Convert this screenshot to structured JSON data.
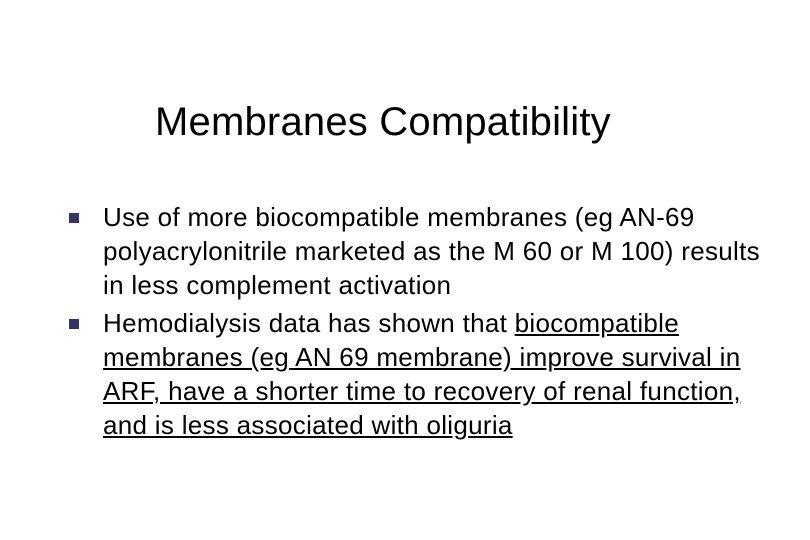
{
  "slide": {
    "title": "Membranes Compatibility",
    "bullets": [
      {
        "text": "Use of more biocompatible membranes (eg AN-69 polyacrylonitrile marketed as the M 60 or M 100) results in less complement activation",
        "bullet_color": "#333366"
      },
      {
        "prefix": "Hemodialysis data has shown that ",
        "underlined": "biocompatible membranes (eg AN 69 membrane) improve survival in ARF, have a shorter time to recovery of renal function, and is less associated with oliguria",
        "bullet_color": "#333366"
      }
    ],
    "title_fontsize": 40,
    "body_fontsize": 26,
    "background_color": "#ffffff",
    "text_color": "#000000"
  }
}
